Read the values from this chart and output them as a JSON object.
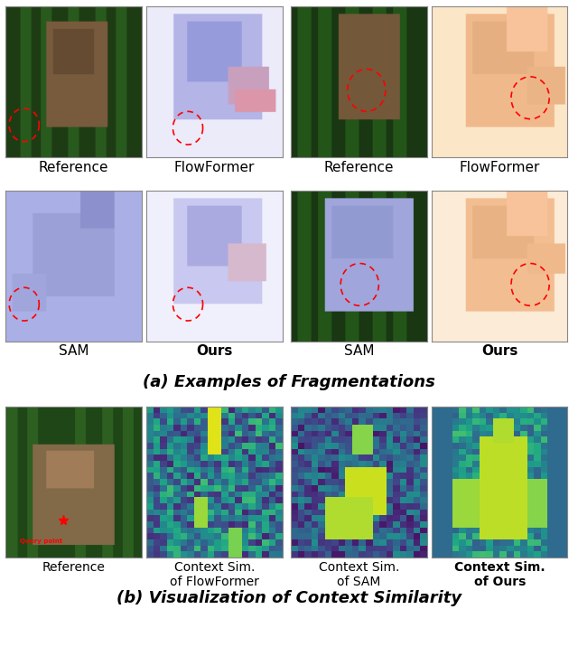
{
  "title_a": "(a) Examples of Fragmentations",
  "title_b": "(b) Visualization of Context Similarity",
  "labels_row1": [
    "Reference",
    "FlowFormer",
    "Reference",
    "FlowFormer"
  ],
  "labels_row2": [
    "SAM",
    "Ours",
    "SAM",
    "Ours"
  ],
  "labels_row3": [
    "Reference",
    "Context Sim.\nof FlowFormer",
    "Context Sim.\nof SAM",
    "Context Sim.\nof Ours"
  ],
  "ours_bold": [
    false,
    true,
    false,
    true
  ],
  "ours_bold_row3": [
    false,
    false,
    false,
    true
  ],
  "background": "#ffffff",
  "border_color": "#000000",
  "title_fontsize": 13,
  "label_fontsize": 11,
  "query_text": "Query point",
  "query_color": "#ff0000"
}
